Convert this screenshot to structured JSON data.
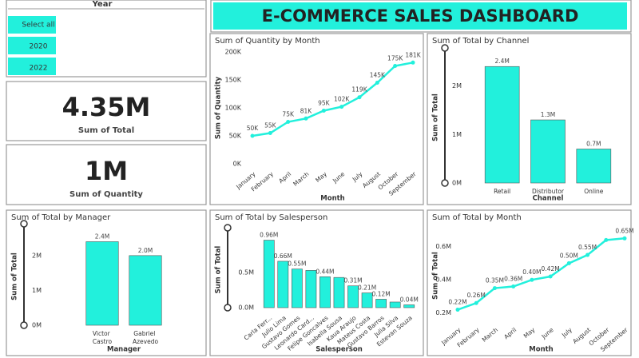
{
  "header": {
    "title": "E-COMMERCE SALES DASHBOARD"
  },
  "slicer": {
    "title": "Year",
    "items": [
      "Select all",
      "2020",
      "2022"
    ]
  },
  "cards": [
    {
      "value": "4.35M",
      "label": "Sum of Total"
    },
    {
      "value": "1M",
      "label": "Sum of Quantity"
    }
  ],
  "chart_data": [
    {
      "type": "line",
      "title": "Sum of Quantity by Month",
      "xlabel": "Month",
      "ylabel": "Sum of Quantity",
      "categories": [
        "January",
        "February",
        "April",
        "March",
        "May",
        "June",
        "July",
        "August",
        "October",
        "September"
      ],
      "values": [
        50000,
        55000,
        75000,
        81000,
        95000,
        102000,
        119000,
        145000,
        175000,
        181000
      ],
      "value_labels": [
        "50K",
        "55K",
        "75K",
        "81K",
        "95K",
        "102K",
        "119K",
        "145K",
        "175K",
        "181K"
      ],
      "color": "#22f0dc",
      "ylim": [
        0,
        200000
      ],
      "yticks": [
        {
          "value": 0,
          "label": "0K"
        },
        {
          "value": 50000,
          "label": "50K"
        },
        {
          "value": 100000,
          "label": "100K"
        },
        {
          "value": 150000,
          "label": "150K"
        },
        {
          "value": 200000,
          "label": "200K"
        }
      ]
    },
    {
      "type": "bar",
      "title": "Sum of Total by Channel",
      "xlabel": "Channel",
      "ylabel": "Sum of Total",
      "categories": [
        "Retail",
        "Distributor",
        "Online"
      ],
      "values": [
        2400000,
        1300000,
        700000
      ],
      "value_labels": [
        "2.4M",
        "1.3M",
        "0.7M"
      ],
      "color": "#22f0dc",
      "ylim": [
        0,
        2700000
      ],
      "yticks": [
        {
          "value": 0,
          "label": "0M"
        },
        {
          "value": 1000000,
          "label": "1M"
        },
        {
          "value": 2000000,
          "label": "2M"
        }
      ]
    },
    {
      "type": "bar",
      "title": "Sum of Total by Manager",
      "xlabel": "Manager",
      "ylabel": "Sum of Total",
      "categories": [
        "Victor Castro",
        "Gabriel Azevedo"
      ],
      "values": [
        2400000,
        2000000
      ],
      "value_labels": [
        "2.4M",
        "2.0M"
      ],
      "color": "#22f0dc",
      "ylim": [
        0,
        2800000
      ],
      "yticks": [
        {
          "value": 0,
          "label": "0M"
        },
        {
          "value": 1000000,
          "label": "1M"
        },
        {
          "value": 2000000,
          "label": "2M"
        }
      ]
    },
    {
      "type": "bar",
      "title": "Sum of Total by Salesperson",
      "xlabel": "Salesperson",
      "ylabel": "Sum of Total",
      "categories": [
        "Carla Ferr...",
        "Julio Lima",
        "Gustavo Gomes",
        "Leonardo Card...",
        "Felipe Goncalves",
        "Isabella Sousa",
        "Kaua Araujo",
        "Mateus Costa",
        "Gustavo Barros",
        "Julia Silva",
        "Estevan Souza"
      ],
      "values": [
        960000,
        660000,
        550000,
        530000,
        440000,
        430000,
        310000,
        210000,
        120000,
        80000,
        40000
      ],
      "value_labels": [
        "0.96M",
        "0.66M",
        "0.55M",
        null,
        "0.44M",
        null,
        "0.31M",
        "0.21M",
        "0.12M",
        null,
        "0.04M"
      ],
      "color": "#22f0dc",
      "ylim": [
        0,
        1080000
      ],
      "yticks": [
        {
          "value": 0,
          "label": "0.0M"
        },
        {
          "value": 500000,
          "label": "0.5M"
        }
      ]
    },
    {
      "type": "line",
      "title": "Sum of Total by Month",
      "xlabel": "Month",
      "ylabel": "Sum of Total",
      "categories": [
        "January",
        "February",
        "March",
        "April",
        "May",
        "June",
        "July",
        "August",
        "October",
        "September"
      ],
      "values": [
        220000,
        260000,
        350000,
        360000,
        400000,
        420000,
        500000,
        550000,
        640000,
        650000
      ],
      "value_labels": [
        "0.22M",
        "0.26M",
        "0.35M",
        "0.36M",
        "0.40M",
        "0.42M",
        "0.50M",
        "0.55M",
        null,
        "0.65M"
      ],
      "color": "#22f0dc",
      "ylim": [
        160000,
        690000
      ],
      "yticks": [
        {
          "value": 200000,
          "label": "0.2M"
        },
        {
          "value": 400000,
          "label": "0.4M"
        },
        {
          "value": 600000,
          "label": "0.6M"
        }
      ]
    }
  ]
}
